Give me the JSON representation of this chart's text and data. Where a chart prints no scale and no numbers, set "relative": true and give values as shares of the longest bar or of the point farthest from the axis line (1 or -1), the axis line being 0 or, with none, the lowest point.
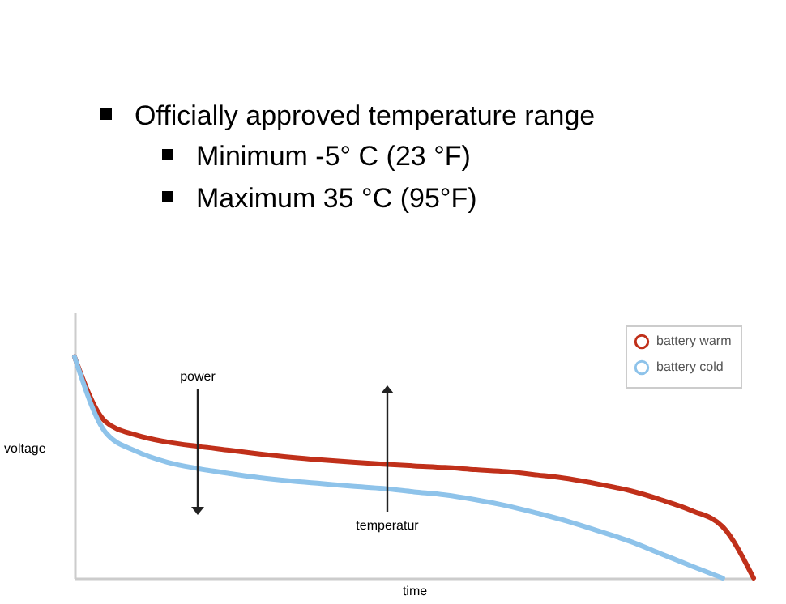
{
  "chart_data": {
    "type": "line",
    "relative": true,
    "xlabel": "time",
    "ylabel": "voltage",
    "legend": "top right",
    "grid": false,
    "categories": [
      null,
      null,
      null,
      null,
      null,
      null,
      null,
      null,
      null,
      null,
      null,
      null,
      null,
      null,
      null,
      null,
      null,
      null,
      null,
      null,
      null,
      null,
      null
    ],
    "series": [
      {
        "name": "battery warm",
        "color": "#c0301a",
        "values": [
          1.0,
          0.707,
          0.646,
          0.615,
          0.595,
          0.578,
          0.561,
          0.546,
          0.534,
          0.524,
          0.515,
          0.507,
          0.5,
          0.49,
          0.481,
          0.466,
          0.449,
          0.424,
          0.395,
          0.354,
          0.305,
          0.232,
          0
        ]
      },
      {
        "name": "battery cold",
        "color": "#8ec3ea",
        "values": [
          1.0,
          0.659,
          0.573,
          0.524,
          0.495,
          0.473,
          0.454,
          0.439,
          0.427,
          0.415,
          0.405,
          0.39,
          0.376,
          0.354,
          0.327,
          0.293,
          0.256,
          0.212,
          0.166,
          0.11,
          0.054,
          0,
          null
        ]
      }
    ],
    "annotations": [
      "Officially approved temperature range",
      "Minimum -5° C (23 °F)",
      "Maximum 35 °C (95°F)",
      "power",
      "temperatur"
    ]
  }
}
